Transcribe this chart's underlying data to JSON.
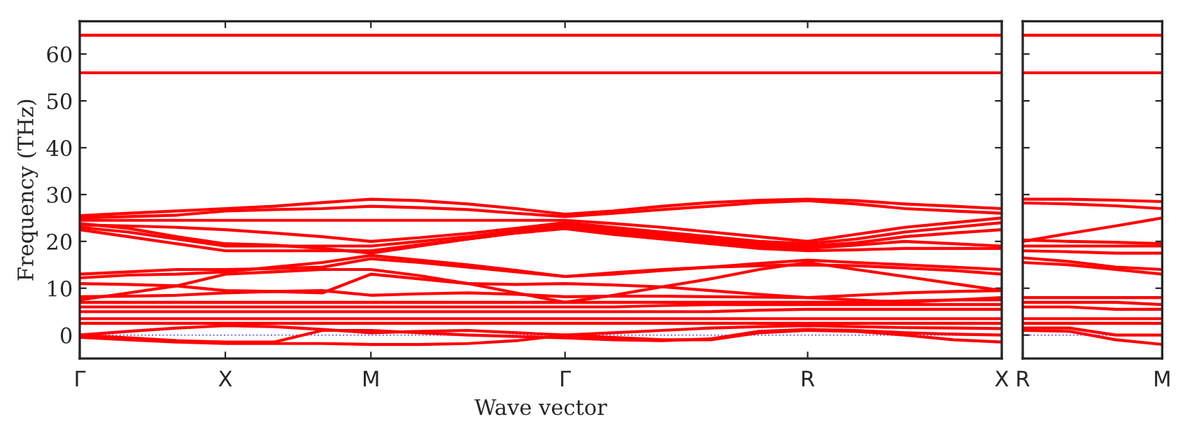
{
  "chart_data": [
    {
      "type": "line",
      "ylabel": "Frequency (THz)",
      "xlabel": "Wave vector",
      "legend": false,
      "grid": false,
      "marker": "none",
      "line_style": "solid",
      "ylim": [
        -5,
        67
      ],
      "yticks": [
        0,
        10,
        20,
        30,
        40,
        50,
        60
      ],
      "categories": [
        "Γ",
        null,
        null,
        "X",
        null,
        null,
        "M",
        null,
        null,
        null,
        "Γ",
        null,
        null,
        null,
        null,
        "R",
        null,
        null,
        null,
        "X"
      ],
      "ref_lines": [
        {
          "axis": "y",
          "value": 0,
          "color": "#6666ff",
          "line_style": "dotted"
        }
      ],
      "series": [
        {
          "color": "#ff0000",
          "values": [
            64,
            64,
            64,
            64,
            64,
            64,
            64,
            64,
            64,
            64,
            64,
            64,
            64,
            64,
            64,
            64,
            64,
            64,
            64,
            64
          ]
        },
        {
          "color": "#ff0000",
          "values": [
            56,
            56,
            56,
            56,
            56,
            56,
            56,
            56,
            56,
            56,
            56,
            56,
            56,
            56,
            56,
            56,
            56,
            56,
            56,
            56
          ]
        },
        {
          "color": "#ff0000",
          "values": [
            25.5,
            26,
            26.5,
            27,
            27.5,
            28.3,
            29,
            28.7,
            28,
            27,
            25.8,
            26.5,
            27.5,
            28.3,
            28.8,
            29,
            28.7,
            28,
            27.5,
            27
          ]
        },
        {
          "color": "#ff0000",
          "values": [
            25,
            25.3,
            25.6,
            26.5,
            26.8,
            27,
            27.5,
            27.2,
            26.8,
            26,
            25.3,
            26,
            26.8,
            27.5,
            28.3,
            28.7,
            28,
            27,
            26.5,
            26
          ]
        },
        {
          "color": "#ff0000",
          "values": [
            24.5,
            24.5,
            24.5,
            24.5,
            24.5,
            24.5,
            24.5,
            24.5,
            24.5,
            24.5,
            24.5,
            23.8,
            23,
            22,
            21,
            20,
            21.5,
            23,
            24,
            25
          ]
        },
        {
          "color": "#ff0000",
          "values": [
            23.5,
            23.3,
            23,
            22.5,
            21.8,
            21,
            20,
            20.8,
            21.7,
            22.8,
            24,
            23,
            22,
            21,
            20,
            19.5,
            20.5,
            22,
            23,
            24
          ]
        },
        {
          "color": "#ff0000",
          "values": [
            23,
            22,
            20.5,
            19,
            19,
            19,
            19,
            20,
            21,
            22.3,
            23.5,
            22.5,
            21.5,
            20.5,
            19.5,
            19,
            19.7,
            21,
            21.8,
            22.5
          ]
        },
        {
          "color": "#ff0000",
          "values": [
            22.5,
            21,
            19.5,
            18,
            18,
            18,
            18,
            19.3,
            20.5,
            21.8,
            23,
            22,
            21,
            20,
            19,
            18.5,
            19.2,
            20,
            19.5,
            19
          ]
        },
        {
          "color": "#ff0000",
          "values": [
            23.8,
            22.8,
            21,
            19.5,
            19.2,
            18.5,
            17.5,
            19,
            20.5,
            21.8,
            22.7,
            21.5,
            20.5,
            19.5,
            18.5,
            18,
            18.2,
            18.5,
            18.5,
            18.5
          ]
        },
        {
          "color": "#ff0000",
          "values": [
            12.2,
            12.8,
            13,
            13.5,
            14.5,
            15.5,
            17,
            16,
            15,
            13.8,
            12.5,
            13,
            13.8,
            14.5,
            15.3,
            16,
            15.5,
            15,
            14.5,
            14
          ]
        },
        {
          "color": "#ff0000",
          "values": [
            13,
            13.5,
            14,
            14,
            14.2,
            14.5,
            16.3,
            15.5,
            14.5,
            13.5,
            12.5,
            13.3,
            14,
            14.5,
            14.8,
            15,
            14.8,
            14.3,
            13.8,
            13
          ]
        },
        {
          "color": "#ff0000",
          "values": [
            11,
            10.8,
            10.5,
            9.5,
            9.3,
            9,
            13,
            12,
            11,
            10.8,
            11,
            10.7,
            10.3,
            9.5,
            8.7,
            8,
            7.5,
            7,
            7.5,
            8
          ]
        },
        {
          "color": "#ff0000",
          "values": [
            7.5,
            9,
            10.5,
            13,
            13.5,
            14,
            14,
            12.7,
            11,
            9,
            7,
            8.5,
            10.3,
            12,
            14,
            15.5,
            14,
            12.5,
            11,
            9.5
          ]
        },
        {
          "color": "#ff0000",
          "values": [
            8.2,
            8.3,
            8.5,
            9,
            9.3,
            9.5,
            8.5,
            8.8,
            9,
            8.7,
            8.2,
            8.3,
            8.3,
            8.2,
            8.1,
            8,
            8.5,
            9,
            9.3,
            9.5
          ]
        },
        {
          "color": "#ff0000",
          "values": [
            7,
            7,
            7,
            7,
            7,
            7,
            7,
            7,
            7,
            7,
            7,
            7,
            7,
            7,
            7,
            7,
            7,
            7.3,
            7.5,
            7.5
          ]
        },
        {
          "color": "#ff0000",
          "values": [
            6,
            6,
            6,
            6,
            6,
            6,
            6,
            6,
            6,
            6,
            6,
            6,
            6.3,
            6.5,
            6.5,
            6.5,
            6.5,
            6.5,
            6.5,
            6.5
          ]
        },
        {
          "color": "#ff0000",
          "values": [
            5,
            5,
            5,
            5,
            5,
            5,
            5,
            5,
            5,
            5,
            5,
            5,
            5,
            5,
            5.3,
            5.5,
            5.5,
            5.5,
            5.5,
            5.5
          ]
        },
        {
          "color": "#ff0000",
          "values": [
            3.5,
            3.5,
            3.5,
            3.5,
            3.5,
            3.5,
            3.5,
            3.5,
            3.5,
            3.5,
            3.5,
            3.5,
            3.5,
            3.5,
            3.5,
            3.5,
            3.5,
            3.5,
            3.5,
            3.5
          ]
        },
        {
          "color": "#ff0000",
          "values": [
            2.5,
            2.5,
            2.5,
            2.5,
            2.5,
            2.5,
            2.5,
            2.5,
            2.5,
            2.5,
            2.5,
            2.5,
            2.5,
            2.5,
            2.5,
            2.5,
            2.5,
            2.5,
            2.5,
            2.5
          ]
        },
        {
          "color": "#ff0000",
          "values": [
            0,
            0.8,
            1.5,
            2,
            1.8,
            1.2,
            0.5,
            0.8,
            1,
            0.5,
            0,
            0.5,
            1,
            1.5,
            1.8,
            2,
            1.8,
            1.6,
            1.5,
            1.4
          ]
        },
        {
          "color": "#ff0000",
          "values": [
            0,
            -0.6,
            -1.2,
            -1.5,
            -1.5,
            1,
            1,
            0.5,
            0,
            -0.3,
            -0.6,
            -1,
            -1.2,
            -0.8,
            0.8,
            1.2,
            1,
            0.5,
            0.2,
            0
          ]
        },
        {
          "color": "#ff0000",
          "values": [
            -0.5,
            -1,
            -1.5,
            -1.8,
            -1.8,
            -1.8,
            -2,
            -2,
            -1.8,
            -1.2,
            0,
            -0.5,
            -1,
            -1,
            0.5,
            1,
            0.8,
            0,
            -1,
            -1.5
          ]
        }
      ]
    },
    {
      "type": "line",
      "legend": false,
      "grid": false,
      "marker": "none",
      "line_style": "solid",
      "tick_labels": "x",
      "ylim": [
        -5,
        67
      ],
      "yticks": [
        0,
        10,
        20,
        30,
        40,
        50,
        60
      ],
      "categories": [
        "R",
        null,
        null,
        "M"
      ],
      "ref_lines": [
        {
          "axis": "y",
          "value": 0,
          "color": "#6666ff",
          "line_style": "dotted"
        }
      ],
      "series": [
        {
          "color": "#ff0000",
          "values": [
            64,
            64,
            64,
            64
          ]
        },
        {
          "color": "#ff0000",
          "values": [
            56,
            56,
            56,
            56
          ]
        },
        {
          "color": "#ff0000",
          "values": [
            29,
            29,
            28.8,
            28.5
          ]
        },
        {
          "color": "#ff0000",
          "values": [
            28.2,
            28,
            27.6,
            27
          ]
        },
        {
          "color": "#ff0000",
          "values": [
            20,
            21.7,
            23.3,
            25
          ]
        },
        {
          "color": "#ff0000",
          "values": [
            20.3,
            20,
            19.8,
            19.5
          ]
        },
        {
          "color": "#ff0000",
          "values": [
            19,
            19,
            19,
            19
          ]
        },
        {
          "color": "#ff0000",
          "values": [
            18,
            17.8,
            17.5,
            17.5
          ]
        },
        {
          "color": "#ff0000",
          "values": [
            16.5,
            15.7,
            14.5,
            14
          ]
        },
        {
          "color": "#ff0000",
          "values": [
            15.5,
            15,
            14,
            13
          ]
        },
        {
          "color": "#ff0000",
          "values": [
            8,
            8,
            8,
            8
          ]
        },
        {
          "color": "#ff0000",
          "values": [
            7,
            7,
            7,
            6.5
          ]
        },
        {
          "color": "#ff0000",
          "values": [
            6,
            6,
            5.5,
            5.5
          ]
        },
        {
          "color": "#ff0000",
          "values": [
            3.5,
            3.5,
            3.5,
            3.5
          ]
        },
        {
          "color": "#ff0000",
          "values": [
            2.5,
            2.5,
            2.5,
            2.5
          ]
        },
        {
          "color": "#ff0000",
          "values": [
            1.5,
            1.5,
            0,
            0
          ]
        },
        {
          "color": "#ff0000",
          "values": [
            1,
            0.8,
            -1,
            -2
          ]
        }
      ]
    }
  ]
}
